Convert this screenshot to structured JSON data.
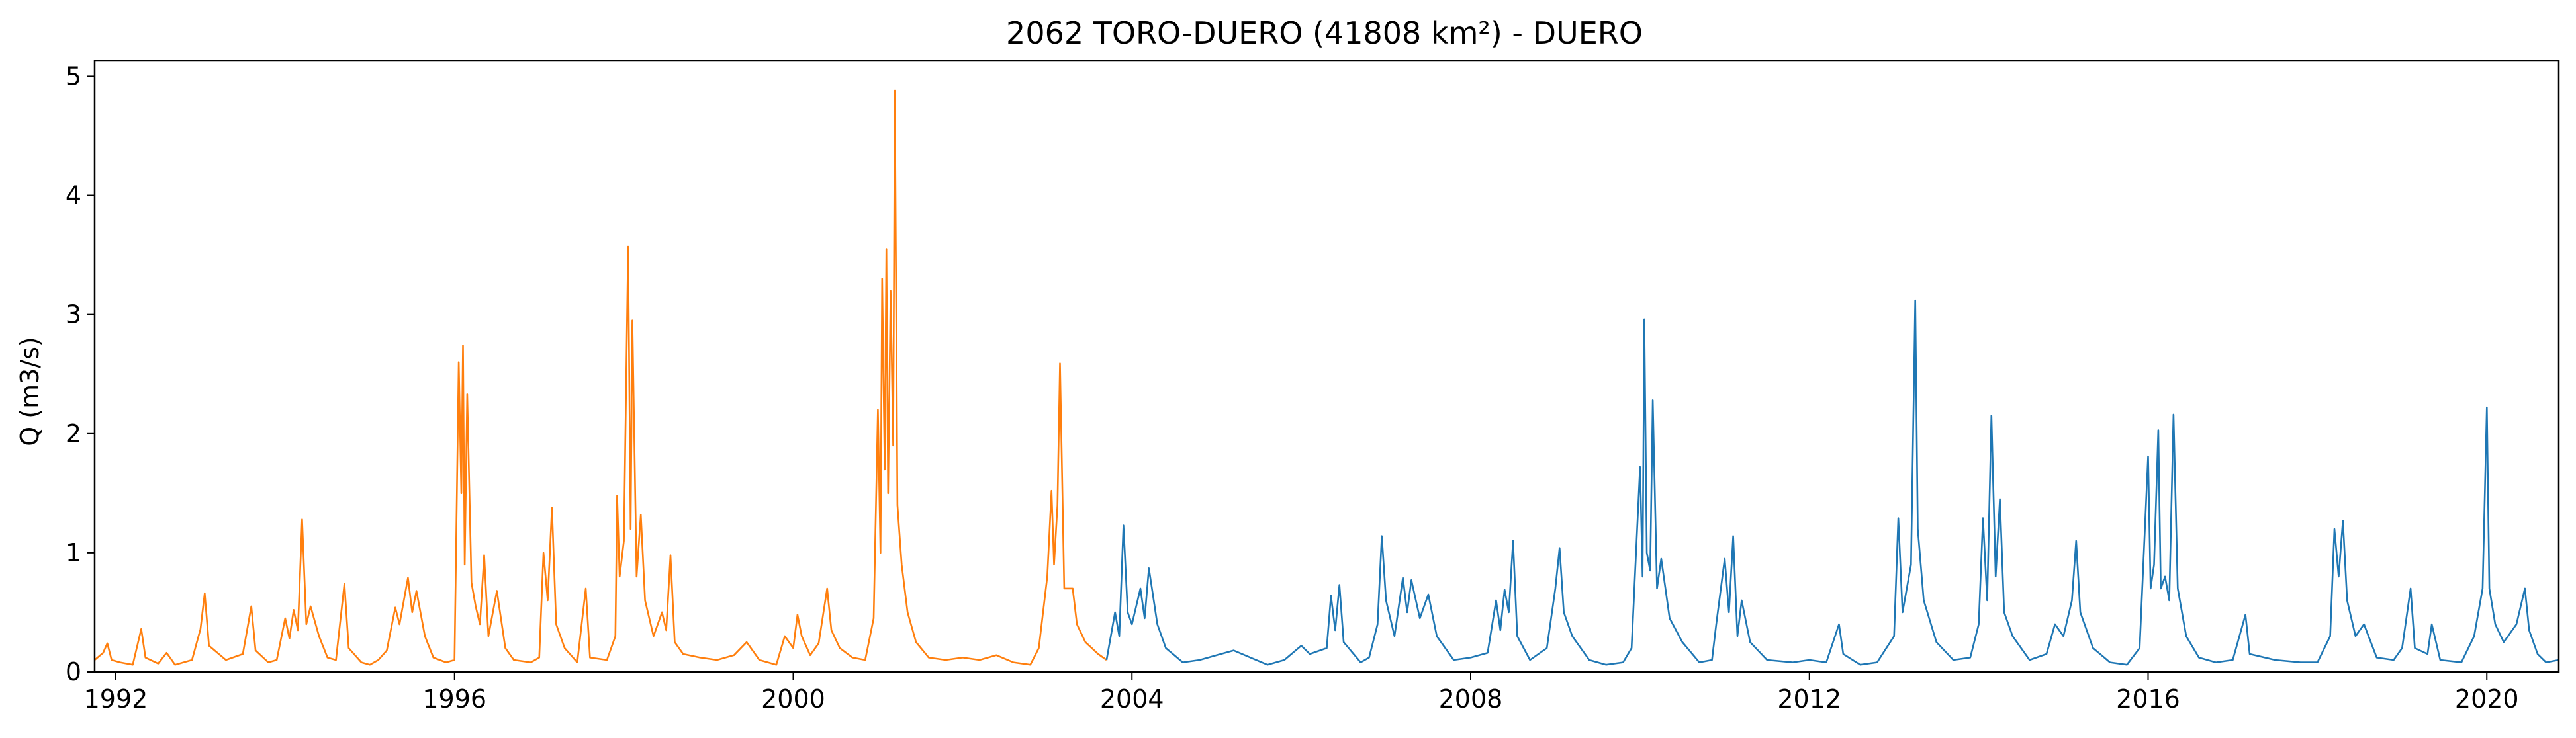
{
  "chart_data": {
    "type": "line",
    "title": "2062 TORO-DUERO (41808 km²) - DUERO",
    "xlabel": "",
    "ylabel": "Q (m3/s)",
    "xlim": [
      1991.75,
      2020.85
    ],
    "ylim": [
      0,
      5.13
    ],
    "x_ticks": [
      1992,
      1996,
      2000,
      2004,
      2008,
      2012,
      2016,
      2020
    ],
    "y_ticks": [
      0,
      1,
      2,
      3,
      4,
      5
    ],
    "grid": false,
    "colors": {
      "series_1": "#ff7f0e",
      "series_2": "#1f77b4"
    },
    "series": [
      {
        "color": "#ff7f0e",
        "points": [
          [
            1991.75,
            0.1
          ],
          [
            1991.85,
            0.16
          ],
          [
            1991.9,
            0.24
          ],
          [
            1991.95,
            0.1
          ],
          [
            1992.05,
            0.08
          ],
          [
            1992.2,
            0.06
          ],
          [
            1992.3,
            0.36
          ],
          [
            1992.35,
            0.12
          ],
          [
            1992.5,
            0.07
          ],
          [
            1992.6,
            0.16
          ],
          [
            1992.7,
            0.06
          ],
          [
            1992.9,
            0.1
          ],
          [
            1993.0,
            0.36
          ],
          [
            1993.05,
            0.66
          ],
          [
            1993.1,
            0.22
          ],
          [
            1993.3,
            0.1
          ],
          [
            1993.5,
            0.15
          ],
          [
            1993.6,
            0.55
          ],
          [
            1993.65,
            0.18
          ],
          [
            1993.8,
            0.08
          ],
          [
            1993.9,
            0.1
          ],
          [
            1994.0,
            0.45
          ],
          [
            1994.05,
            0.28
          ],
          [
            1994.1,
            0.52
          ],
          [
            1994.15,
            0.35
          ],
          [
            1994.2,
            1.28
          ],
          [
            1994.25,
            0.4
          ],
          [
            1994.3,
            0.55
          ],
          [
            1994.4,
            0.3
          ],
          [
            1994.5,
            0.12
          ],
          [
            1994.6,
            0.1
          ],
          [
            1994.7,
            0.74
          ],
          [
            1994.75,
            0.2
          ],
          [
            1994.9,
            0.08
          ],
          [
            1995.0,
            0.06
          ],
          [
            1995.1,
            0.1
          ],
          [
            1995.2,
            0.18
          ],
          [
            1995.3,
            0.54
          ],
          [
            1995.35,
            0.4
          ],
          [
            1995.45,
            0.79
          ],
          [
            1995.5,
            0.5
          ],
          [
            1995.55,
            0.68
          ],
          [
            1995.65,
            0.3
          ],
          [
            1995.75,
            0.12
          ],
          [
            1995.9,
            0.08
          ],
          [
            1996.0,
            0.1
          ],
          [
            1996.05,
            2.6
          ],
          [
            1996.08,
            1.5
          ],
          [
            1996.1,
            2.74
          ],
          [
            1996.12,
            0.9
          ],
          [
            1996.15,
            2.33
          ],
          [
            1996.2,
            0.75
          ],
          [
            1996.25,
            0.55
          ],
          [
            1996.3,
            0.4
          ],
          [
            1996.35,
            0.98
          ],
          [
            1996.4,
            0.3
          ],
          [
            1996.5,
            0.68
          ],
          [
            1996.6,
            0.2
          ],
          [
            1996.7,
            0.1
          ],
          [
            1996.9,
            0.08
          ],
          [
            1997.0,
            0.12
          ],
          [
            1997.05,
            1.0
          ],
          [
            1997.1,
            0.6
          ],
          [
            1997.15,
            1.38
          ],
          [
            1997.2,
            0.4
          ],
          [
            1997.3,
            0.2
          ],
          [
            1997.45,
            0.08
          ],
          [
            1997.55,
            0.7
          ],
          [
            1997.6,
            0.12
          ],
          [
            1997.8,
            0.1
          ],
          [
            1997.9,
            0.3
          ],
          [
            1997.92,
            1.48
          ],
          [
            1997.95,
            0.8
          ],
          [
            1998.0,
            1.1
          ],
          [
            1998.05,
            3.57
          ],
          [
            1998.08,
            1.2
          ],
          [
            1998.1,
            2.95
          ],
          [
            1998.15,
            0.8
          ],
          [
            1998.2,
            1.32
          ],
          [
            1998.25,
            0.6
          ],
          [
            1998.35,
            0.3
          ],
          [
            1998.45,
            0.5
          ],
          [
            1998.5,
            0.35
          ],
          [
            1998.55,
            0.98
          ],
          [
            1998.6,
            0.25
          ],
          [
            1998.7,
            0.15
          ],
          [
            1998.9,
            0.12
          ],
          [
            1999.1,
            0.1
          ],
          [
            1999.3,
            0.14
          ],
          [
            1999.45,
            0.25
          ],
          [
            1999.6,
            0.1
          ],
          [
            1999.8,
            0.06
          ],
          [
            1999.9,
            0.3
          ],
          [
            2000.0,
            0.2
          ],
          [
            2000.05,
            0.48
          ],
          [
            2000.1,
            0.3
          ],
          [
            2000.2,
            0.14
          ],
          [
            2000.3,
            0.24
          ],
          [
            2000.4,
            0.7
          ],
          [
            2000.45,
            0.35
          ],
          [
            2000.55,
            0.2
          ],
          [
            2000.7,
            0.12
          ],
          [
            2000.85,
            0.1
          ],
          [
            2000.95,
            0.45
          ],
          [
            2001.0,
            2.2
          ],
          [
            2001.03,
            1.0
          ],
          [
            2001.05,
            3.3
          ],
          [
            2001.08,
            1.7
          ],
          [
            2001.1,
            3.55
          ],
          [
            2001.12,
            1.5
          ],
          [
            2001.15,
            3.2
          ],
          [
            2001.18,
            1.9
          ],
          [
            2001.2,
            4.88
          ],
          [
            2001.23,
            1.4
          ],
          [
            2001.28,
            0.9
          ],
          [
            2001.35,
            0.5
          ],
          [
            2001.45,
            0.25
          ],
          [
            2001.6,
            0.12
          ],
          [
            2001.8,
            0.1
          ],
          [
            2002.0,
            0.12
          ],
          [
            2002.2,
            0.1
          ],
          [
            2002.4,
            0.14
          ],
          [
            2002.6,
            0.08
          ],
          [
            2002.8,
            0.06
          ],
          [
            2002.9,
            0.2
          ],
          [
            2003.0,
            0.8
          ],
          [
            2003.05,
            1.52
          ],
          [
            2003.08,
            0.9
          ],
          [
            2003.12,
            1.4
          ],
          [
            2003.15,
            2.59
          ],
          [
            2003.2,
            0.7
          ],
          [
            2003.3,
            0.7
          ],
          [
            2003.35,
            0.4
          ],
          [
            2003.45,
            0.25
          ],
          [
            2003.6,
            0.15
          ],
          [
            2003.7,
            0.1
          ]
        ]
      },
      {
        "color": "#1f77b4",
        "points": [
          [
            2003.7,
            0.1
          ],
          [
            2003.8,
            0.5
          ],
          [
            2003.85,
            0.3
          ],
          [
            2003.9,
            1.23
          ],
          [
            2003.95,
            0.5
          ],
          [
            2004.0,
            0.4
          ],
          [
            2004.1,
            0.7
          ],
          [
            2004.15,
            0.45
          ],
          [
            2004.2,
            0.87
          ],
          [
            2004.3,
            0.4
          ],
          [
            2004.4,
            0.2
          ],
          [
            2004.6,
            0.08
          ],
          [
            2004.8,
            0.1
          ],
          [
            2005.0,
            0.14
          ],
          [
            2005.2,
            0.18
          ],
          [
            2005.4,
            0.12
          ],
          [
            2005.6,
            0.06
          ],
          [
            2005.8,
            0.1
          ],
          [
            2006.0,
            0.22
          ],
          [
            2006.1,
            0.15
          ],
          [
            2006.3,
            0.2
          ],
          [
            2006.35,
            0.64
          ],
          [
            2006.4,
            0.35
          ],
          [
            2006.45,
            0.73
          ],
          [
            2006.5,
            0.25
          ],
          [
            2006.7,
            0.08
          ],
          [
            2006.8,
            0.12
          ],
          [
            2006.9,
            0.4
          ],
          [
            2006.95,
            1.14
          ],
          [
            2007.0,
            0.6
          ],
          [
            2007.1,
            0.3
          ],
          [
            2007.2,
            0.79
          ],
          [
            2007.25,
            0.5
          ],
          [
            2007.3,
            0.77
          ],
          [
            2007.4,
            0.45
          ],
          [
            2007.5,
            0.65
          ],
          [
            2007.6,
            0.3
          ],
          [
            2007.8,
            0.1
          ],
          [
            2008.0,
            0.12
          ],
          [
            2008.2,
            0.16
          ],
          [
            2008.3,
            0.6
          ],
          [
            2008.35,
            0.35
          ],
          [
            2008.4,
            0.69
          ],
          [
            2008.45,
            0.5
          ],
          [
            2008.5,
            1.1
          ],
          [
            2008.55,
            0.3
          ],
          [
            2008.7,
            0.1
          ],
          [
            2008.9,
            0.2
          ],
          [
            2009.0,
            0.7
          ],
          [
            2009.05,
            1.04
          ],
          [
            2009.1,
            0.5
          ],
          [
            2009.2,
            0.3
          ],
          [
            2009.4,
            0.1
          ],
          [
            2009.6,
            0.06
          ],
          [
            2009.8,
            0.08
          ],
          [
            2009.9,
            0.2
          ],
          [
            2010.0,
            1.72
          ],
          [
            2010.03,
            0.8
          ],
          [
            2010.05,
            2.96
          ],
          [
            2010.08,
            1.0
          ],
          [
            2010.12,
            0.85
          ],
          [
            2010.15,
            2.28
          ],
          [
            2010.2,
            0.7
          ],
          [
            2010.25,
            0.95
          ],
          [
            2010.35,
            0.45
          ],
          [
            2010.5,
            0.25
          ],
          [
            2010.7,
            0.08
          ],
          [
            2010.85,
            0.1
          ],
          [
            2010.9,
            0.4
          ],
          [
            2011.0,
            0.95
          ],
          [
            2011.05,
            0.5
          ],
          [
            2011.1,
            1.14
          ],
          [
            2011.15,
            0.3
          ],
          [
            2011.2,
            0.6
          ],
          [
            2011.3,
            0.25
          ],
          [
            2011.5,
            0.1
          ],
          [
            2011.8,
            0.08
          ],
          [
            2012.0,
            0.1
          ],
          [
            2012.2,
            0.08
          ],
          [
            2012.35,
            0.4
          ],
          [
            2012.4,
            0.15
          ],
          [
            2012.6,
            0.06
          ],
          [
            2012.8,
            0.08
          ],
          [
            2013.0,
            0.3
          ],
          [
            2013.05,
            1.29
          ],
          [
            2013.1,
            0.5
          ],
          [
            2013.2,
            0.9
          ],
          [
            2013.25,
            3.12
          ],
          [
            2013.28,
            1.2
          ],
          [
            2013.35,
            0.6
          ],
          [
            2013.5,
            0.25
          ],
          [
            2013.7,
            0.1
          ],
          [
            2013.9,
            0.12
          ],
          [
            2014.0,
            0.4
          ],
          [
            2014.05,
            1.29
          ],
          [
            2014.1,
            0.6
          ],
          [
            2014.15,
            2.15
          ],
          [
            2014.2,
            0.8
          ],
          [
            2014.25,
            1.45
          ],
          [
            2014.3,
            0.5
          ],
          [
            2014.4,
            0.3
          ],
          [
            2014.6,
            0.1
          ],
          [
            2014.8,
            0.15
          ],
          [
            2014.9,
            0.4
          ],
          [
            2015.0,
            0.3
          ],
          [
            2015.1,
            0.6
          ],
          [
            2015.15,
            1.1
          ],
          [
            2015.2,
            0.5
          ],
          [
            2015.35,
            0.2
          ],
          [
            2015.55,
            0.08
          ],
          [
            2015.75,
            0.06
          ],
          [
            2015.9,
            0.2
          ],
          [
            2016.0,
            1.81
          ],
          [
            2016.03,
            0.7
          ],
          [
            2016.07,
            0.9
          ],
          [
            2016.12,
            2.03
          ],
          [
            2016.15,
            0.7
          ],
          [
            2016.2,
            0.8
          ],
          [
            2016.25,
            0.6
          ],
          [
            2016.3,
            2.16
          ],
          [
            2016.35,
            0.7
          ],
          [
            2016.45,
            0.3
          ],
          [
            2016.6,
            0.12
          ],
          [
            2016.8,
            0.08
          ],
          [
            2017.0,
            0.1
          ],
          [
            2017.15,
            0.48
          ],
          [
            2017.2,
            0.15
          ],
          [
            2017.5,
            0.1
          ],
          [
            2017.8,
            0.08
          ],
          [
            2018.0,
            0.08
          ],
          [
            2018.15,
            0.3
          ],
          [
            2018.2,
            1.2
          ],
          [
            2018.25,
            0.8
          ],
          [
            2018.3,
            1.27
          ],
          [
            2018.35,
            0.6
          ],
          [
            2018.45,
            0.3
          ],
          [
            2018.55,
            0.4
          ],
          [
            2018.7,
            0.12
          ],
          [
            2018.9,
            0.1
          ],
          [
            2019.0,
            0.2
          ],
          [
            2019.1,
            0.7
          ],
          [
            2019.15,
            0.2
          ],
          [
            2019.3,
            0.15
          ],
          [
            2019.35,
            0.4
          ],
          [
            2019.45,
            0.1
          ],
          [
            2019.7,
            0.08
          ],
          [
            2019.85,
            0.3
          ],
          [
            2019.95,
            0.7
          ],
          [
            2020.0,
            2.22
          ],
          [
            2020.03,
            0.7
          ],
          [
            2020.1,
            0.4
          ],
          [
            2020.2,
            0.25
          ],
          [
            2020.35,
            0.4
          ],
          [
            2020.45,
            0.7
          ],
          [
            2020.5,
            0.35
          ],
          [
            2020.6,
            0.15
          ],
          [
            2020.7,
            0.08
          ],
          [
            2020.85,
            0.1
          ]
        ]
      }
    ]
  }
}
